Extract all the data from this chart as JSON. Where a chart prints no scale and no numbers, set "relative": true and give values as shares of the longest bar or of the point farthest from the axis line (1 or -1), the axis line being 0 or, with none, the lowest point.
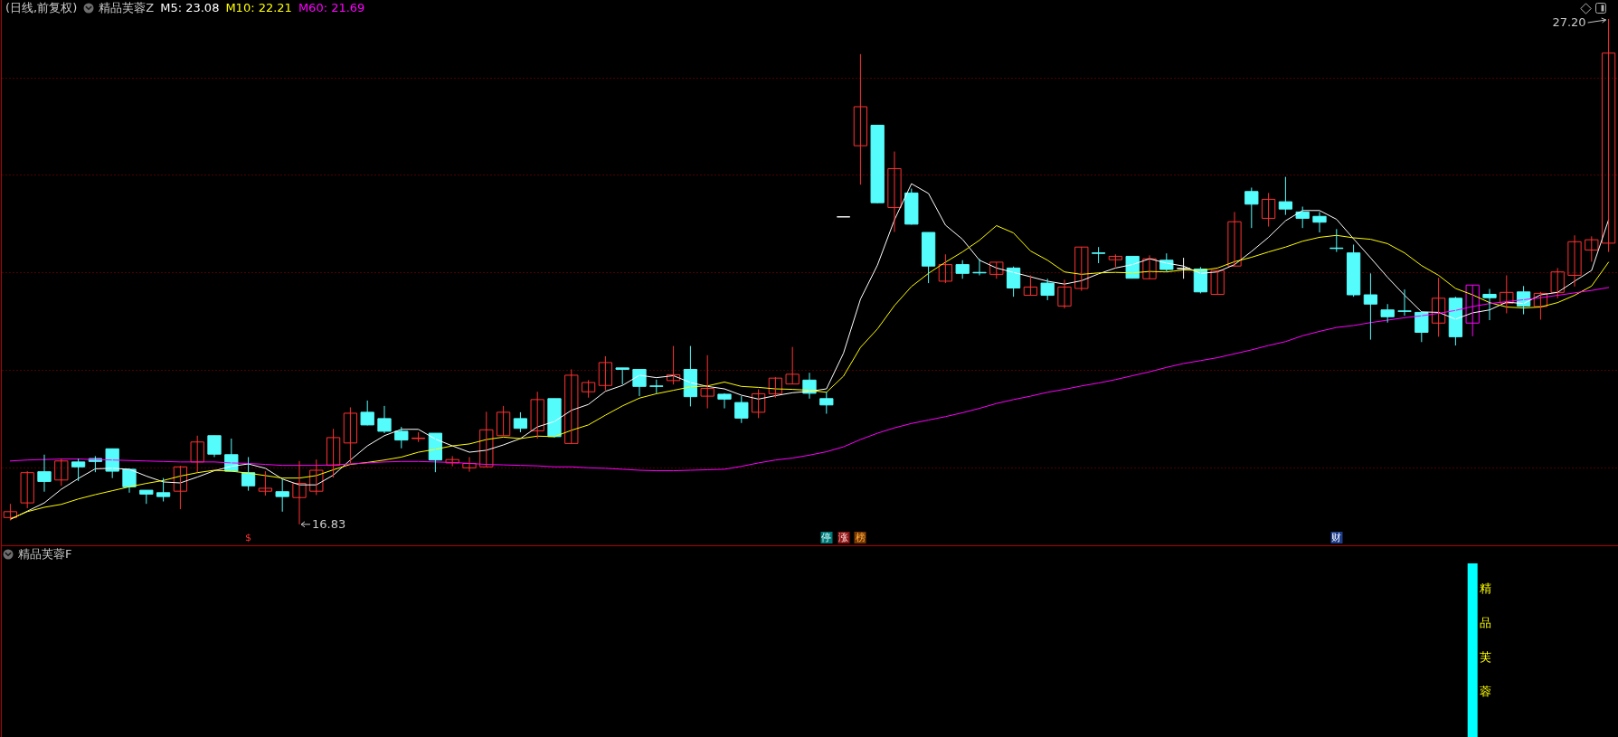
{
  "chart_data": [
    {
      "type": "candlestick",
      "title": "(日线,前复权)",
      "subtitle": "精品芙蓉Z",
      "categories": [
        null,
        null,
        null,
        null,
        null,
        null,
        null,
        null,
        null,
        null,
        null,
        null,
        null,
        null,
        null,
        null,
        null,
        null,
        null,
        null,
        null,
        null,
        null,
        null,
        null,
        null,
        null,
        null,
        null,
        null,
        null,
        null,
        null,
        null,
        null,
        null,
        null,
        null,
        null,
        null,
        null,
        null,
        null,
        null,
        null,
        null,
        null,
        null,
        null,
        null,
        null,
        null,
        null,
        null,
        null,
        null,
        null,
        null,
        null,
        null,
        null,
        null,
        null,
        null,
        null,
        null,
        null,
        null,
        null,
        null,
        null,
        null,
        null,
        null,
        null,
        null,
        null,
        null,
        null,
        null,
        null,
        null,
        null,
        null,
        null,
        null,
        null,
        null,
        null,
        null,
        null,
        null,
        null,
        null,
        null
      ],
      "ohlc": [
        [
          16.97,
          17.25,
          16.91,
          17.09
        ],
        [
          17.27,
          17.92,
          17.16,
          17.89
        ],
        [
          17.91,
          18.26,
          17.5,
          17.71
        ],
        [
          17.74,
          18.18,
          17.62,
          18.13
        ],
        [
          18.11,
          18.18,
          17.72,
          18.01
        ],
        [
          18.18,
          18.23,
          17.9,
          18.12
        ],
        [
          18.38,
          18.38,
          17.78,
          17.92
        ],
        [
          17.96,
          17.96,
          17.48,
          17.6
        ],
        [
          17.53,
          17.53,
          17.25,
          17.45
        ],
        [
          17.48,
          17.78,
          17.3,
          17.4
        ],
        [
          17.51,
          18.03,
          17.14,
          18.01
        ],
        [
          18.11,
          18.65,
          17.9,
          18.52
        ],
        [
          18.65,
          18.65,
          18.21,
          18.27
        ],
        [
          18.26,
          18.59,
          17.92,
          17.92
        ],
        [
          17.89,
          18.21,
          17.52,
          17.62
        ],
        [
          17.51,
          17.92,
          17.42,
          17.57
        ],
        [
          17.5,
          17.76,
          17.09,
          17.4
        ],
        [
          17.38,
          18.13,
          16.83,
          17.67
        ],
        [
          17.51,
          18.16,
          17.43,
          17.94
        ],
        [
          18.04,
          18.79,
          17.79,
          18.61
        ],
        [
          18.5,
          19.23,
          18.08,
          19.11
        ],
        [
          19.13,
          19.37,
          18.86,
          18.87
        ],
        [
          19.0,
          19.26,
          18.7,
          18.74
        ],
        [
          18.74,
          18.83,
          18.39,
          18.56
        ],
        [
          18.59,
          18.72,
          18.52,
          18.6
        ],
        [
          18.7,
          18.7,
          17.9,
          18.15
        ],
        [
          18.09,
          18.23,
          18.02,
          18.16
        ],
        [
          17.99,
          18.21,
          17.91,
          18.08
        ],
        [
          18.01,
          19.14,
          18.01,
          18.77
        ],
        [
          18.65,
          19.26,
          18.65,
          19.13
        ],
        [
          19.0,
          19.13,
          18.72,
          18.8
        ],
        [
          18.75,
          19.55,
          18.59,
          19.39
        ],
        [
          19.41,
          19.41,
          18.61,
          18.63
        ],
        [
          18.49,
          20.01,
          18.49,
          19.89
        ],
        [
          19.55,
          19.79,
          19.43,
          19.74
        ],
        [
          19.68,
          20.28,
          19.58,
          20.15
        ],
        [
          20.04,
          20.04,
          19.7,
          20.01
        ],
        [
          20.01,
          20.01,
          19.46,
          19.66
        ],
        [
          19.67,
          19.8,
          19.52,
          19.66
        ],
        [
          19.78,
          20.49,
          19.7,
          19.9
        ],
        [
          20.01,
          20.49,
          19.25,
          19.45
        ],
        [
          19.46,
          20.3,
          19.21,
          19.62
        ],
        [
          19.5,
          19.52,
          19.21,
          19.4
        ],
        [
          19.33,
          19.46,
          18.91,
          19.01
        ],
        [
          19.13,
          19.6,
          19.01,
          19.51
        ],
        [
          19.51,
          19.85,
          19.43,
          19.83
        ],
        [
          19.71,
          20.47,
          19.71,
          19.91
        ],
        [
          19.79,
          19.94,
          19.41,
          19.52
        ],
        [
          19.41,
          19.55,
          19.1,
          19.28
        ],
        [
          23.14,
          23.14,
          23.14,
          23.14
        ],
        [
          24.6,
          26.48,
          23.8,
          25.4
        ],
        [
          25.02,
          25.02,
          23.42,
          23.43
        ],
        [
          23.33,
          24.48,
          22.83,
          24.13
        ],
        [
          23.63,
          23.72,
          22.98,
          22.99
        ],
        [
          22.82,
          22.82,
          21.78,
          22.13
        ],
        [
          21.82,
          22.37,
          21.78,
          22.16
        ],
        [
          22.16,
          22.25,
          21.87,
          21.98
        ],
        [
          22.0,
          22.28,
          21.94,
          21.99
        ],
        [
          21.96,
          22.21,
          21.87,
          22.21
        ],
        [
          22.09,
          22.12,
          21.5,
          21.68
        ],
        [
          21.53,
          21.94,
          21.53,
          21.7
        ],
        [
          21.78,
          21.87,
          21.43,
          21.53
        ],
        [
          21.31,
          21.85,
          21.26,
          21.7
        ],
        [
          21.67,
          22.52,
          21.62,
          22.52
        ],
        [
          22.4,
          22.52,
          22.19,
          22.39
        ],
        [
          22.26,
          22.37,
          22.11,
          22.33
        ],
        [
          22.33,
          22.33,
          21.88,
          21.88
        ],
        [
          21.87,
          22.35,
          21.87,
          22.28
        ],
        [
          22.25,
          22.39,
          22.02,
          22.06
        ],
        [
          22.08,
          22.3,
          21.87,
          22.08
        ],
        [
          22.07,
          22.11,
          21.57,
          21.6
        ],
        [
          21.55,
          22.04,
          21.55,
          22.04
        ],
        [
          22.13,
          23.24,
          22.13,
          23.04
        ],
        [
          23.66,
          23.74,
          22.91,
          23.4
        ],
        [
          23.11,
          23.63,
          22.94,
          23.5
        ],
        [
          23.45,
          23.96,
          23.18,
          23.3
        ],
        [
          23.24,
          23.35,
          22.91,
          23.11
        ],
        [
          23.15,
          23.24,
          22.82,
          23.03
        ],
        [
          22.5,
          22.89,
          22.42,
          22.49
        ],
        [
          22.4,
          22.57,
          21.5,
          21.54
        ],
        [
          21.54,
          21.98,
          20.62,
          21.35
        ],
        [
          21.23,
          21.35,
          20.97,
          21.09
        ],
        [
          21.21,
          21.65,
          21.11,
          21.2
        ],
        [
          21.18,
          21.19,
          20.57,
          20.77
        ],
        [
          20.96,
          21.89,
          20.68,
          21.47
        ],
        [
          21.47,
          21.5,
          20.5,
          20.68
        ],
        [
          20.96,
          21.74,
          20.69,
          21.74
        ],
        [
          21.55,
          21.66,
          21.02,
          21.48
        ],
        [
          21.37,
          21.94,
          21.16,
          21.59
        ],
        [
          21.6,
          21.72,
          21.14,
          21.31
        ],
        [
          21.3,
          21.6,
          21.03,
          21.57
        ],
        [
          21.59,
          22.09,
          21.47,
          22.01
        ],
        [
          21.94,
          22.76,
          21.71,
          22.63
        ],
        [
          22.46,
          22.74,
          22.22,
          22.67
        ],
        [
          22.6,
          27.2,
          22.42,
          26.5
        ]
      ],
      "colors": [
        "#ff3232",
        "#ff3232",
        "#54fcfc",
        "#ff3232",
        "#54fcfc",
        "#54fcfc",
        "#54fcfc",
        "#54fcfc",
        "#54fcfc",
        "#54fcfc",
        "#ff3232",
        "#ff3232",
        "#54fcfc",
        "#54fcfc",
        "#54fcfc",
        "#ff3232",
        "#54fcfc",
        "#ff3232",
        "#ff3232",
        "#ff3232",
        "#ff3232",
        "#54fcfc",
        "#54fcfc",
        "#54fcfc",
        "#ff3232",
        "#54fcfc",
        "#ff3232",
        "#ff3232",
        "#ff3232",
        "#ff3232",
        "#54fcfc",
        "#ff3232",
        "#54fcfc",
        "#ff3232",
        "#ff3232",
        "#ff3232",
        "#54fcfc",
        "#54fcfc",
        "#54fcfc",
        "#ff3232",
        "#54fcfc",
        "#ff3232",
        "#54fcfc",
        "#54fcfc",
        "#ff3232",
        "#ff3232",
        "#ff3232",
        "#54fcfc",
        "#54fcfc",
        "#ffffff",
        "#ff3232",
        "#54fcfc",
        "#ff3232",
        "#54fcfc",
        "#54fcfc",
        "#ff3232",
        "#54fcfc",
        "#54fcfc",
        "#ff3232",
        "#54fcfc",
        "#ff3232",
        "#54fcfc",
        "#ff3232",
        "#ff3232",
        "#54fcfc",
        "#ff3232",
        "#54fcfc",
        "#ff3232",
        "#54fcfc",
        "#ffffff",
        "#54fcfc",
        "#ff3232",
        "#ff3232",
        "#54fcfc",
        "#ff3232",
        "#54fcfc",
        "#54fcfc",
        "#54fcfc",
        "#54fcfc",
        "#54fcfc",
        "#54fcfc",
        "#54fcfc",
        "#54fcfc",
        "#54fcfc",
        "#ff3232",
        "#54fcfc",
        "#ff00ff",
        "#54fcfc",
        "#ff3232",
        "#54fcfc",
        "#ff3232",
        "#ff3232",
        "#ff3232",
        "#ff3232",
        "#ff3232"
      ],
      "series": [
        {
          "name": "M5: 23.08",
          "type": "line",
          "color": "#ffffff",
          "values": [
            16.93,
            17.1,
            17.27,
            17.55,
            17.77,
            17.97,
            17.98,
            17.96,
            17.82,
            17.7,
            17.68,
            17.8,
            17.93,
            18.02,
            18.07,
            17.98,
            17.76,
            17.64,
            17.64,
            17.84,
            18.15,
            18.44,
            18.65,
            18.78,
            18.78,
            18.58,
            18.44,
            18.31,
            18.35,
            18.46,
            18.59,
            18.83,
            18.94,
            19.17,
            19.29,
            19.56,
            19.68,
            19.89,
            19.84,
            19.88,
            19.74,
            19.66,
            19.61,
            19.48,
            19.4,
            19.47,
            19.53,
            19.56,
            19.61,
            20.34,
            21.45,
            22.15,
            23.08,
            23.82,
            23.62,
            22.97,
            22.68,
            22.25,
            22.09,
            22.0,
            21.91,
            21.82,
            21.76,
            21.83,
            21.97,
            22.09,
            22.16,
            22.28,
            22.19,
            22.13,
            21.98,
            22.01,
            22.16,
            22.43,
            22.72,
            23.06,
            23.27,
            23.27,
            23.09,
            22.69,
            22.3,
            21.9,
            21.53,
            21.19,
            21.18,
            21.04,
            21.17,
            21.23,
            21.39,
            21.36,
            21.54,
            21.59,
            21.82,
            22.04,
            23.08
          ]
        },
        {
          "name": "M10: 22.21",
          "type": "line",
          "color": "#ffff00",
          "values": [
            16.94,
            17.09,
            17.18,
            17.24,
            17.35,
            17.44,
            17.52,
            17.6,
            17.67,
            17.73,
            17.82,
            17.89,
            17.94,
            17.92,
            17.88,
            17.83,
            17.78,
            17.78,
            17.83,
            17.95,
            18.06,
            18.1,
            18.15,
            18.21,
            18.31,
            18.37,
            18.44,
            18.48,
            18.57,
            18.62,
            18.59,
            18.64,
            18.63,
            18.76,
            18.87,
            19.07,
            19.26,
            19.42,
            19.51,
            19.58,
            19.65,
            19.67,
            19.75,
            19.66,
            19.64,
            19.61,
            19.6,
            19.58,
            19.54,
            19.87,
            20.46,
            20.84,
            21.32,
            21.71,
            21.98,
            22.21,
            22.42,
            22.66,
            22.96,
            22.81,
            22.44,
            22.25,
            22.01,
            21.96,
            21.99,
            22.0,
            21.99,
            22.02,
            22.01,
            22.05,
            22.04,
            22.09,
            22.22,
            22.31,
            22.42,
            22.52,
            22.64,
            22.72,
            22.76,
            22.71,
            22.68,
            22.59,
            22.4,
            22.14,
            21.94,
            21.67,
            21.54,
            21.38,
            21.29,
            21.27,
            21.29,
            21.38,
            21.53,
            21.72,
            22.21
          ]
        },
        {
          "name": "M60: 21.69",
          "type": "line",
          "color": "#ff00ff",
          "values": [
            18.13,
            18.15,
            18.16,
            18.17,
            18.17,
            18.16,
            18.15,
            18.14,
            18.13,
            18.12,
            18.11,
            18.11,
            18.11,
            18.09,
            18.08,
            18.06,
            18.04,
            18.04,
            18.04,
            18.05,
            18.07,
            18.09,
            18.11,
            18.12,
            18.12,
            18.11,
            18.1,
            18.08,
            18.06,
            18.05,
            18.04,
            18.03,
            18.01,
            18.01,
            17.99,
            17.98,
            17.96,
            17.94,
            17.93,
            17.93,
            17.94,
            17.95,
            17.96,
            18.02,
            18.09,
            18.15,
            18.19,
            18.25,
            18.32,
            18.42,
            18.57,
            18.7,
            18.81,
            18.9,
            18.97,
            19.04,
            19.12,
            19.21,
            19.31,
            19.39,
            19.46,
            19.54,
            19.6,
            19.67,
            19.73,
            19.8,
            19.88,
            19.96,
            20.05,
            20.13,
            20.19,
            20.25,
            20.33,
            20.41,
            20.5,
            20.58,
            20.7,
            20.79,
            20.87,
            20.91,
            20.97,
            21.02,
            21.07,
            21.11,
            21.16,
            21.22,
            21.3,
            21.36,
            21.4,
            21.44,
            21.48,
            21.53,
            21.58,
            21.63,
            21.69
          ]
        }
      ],
      "ylim": [
        16.4,
        27.59
      ],
      "yticks": [
        {
          "value": 18,
          "label": null
        },
        {
          "value": 20,
          "label": null
        },
        {
          "value": 22,
          "label": null
        },
        {
          "value": 24,
          "label": null
        },
        {
          "value": 26,
          "label": null
        }
      ],
      "grid": "y",
      "legend": "top left",
      "annotations": [
        "27.20",
        "16.83",
        "$",
        "停",
        "涨",
        "榜",
        "财"
      ]
    },
    {
      "type": "bar",
      "title": "精品芙蓉F",
      "relative": true,
      "color": "#00ffff",
      "categories": [
        null,
        null,
        null,
        null,
        null,
        null,
        null,
        null,
        null,
        null,
        null,
        null,
        null,
        null,
        null,
        null,
        null,
        null,
        null,
        null,
        null,
        null,
        null,
        null,
        null,
        null,
        null,
        null,
        null,
        null,
        null,
        null,
        null,
        null,
        null,
        null,
        null,
        null,
        null,
        null,
        null,
        null,
        null,
        null,
        null,
        null,
        null,
        null,
        null,
        null,
        null,
        null,
        null,
        null,
        null,
        null,
        null,
        null,
        null,
        null,
        null,
        null,
        null,
        null,
        null,
        null,
        null,
        null,
        null,
        null,
        null,
        null,
        null,
        null,
        null,
        null,
        null,
        null,
        null,
        null,
        null,
        null,
        null,
        null,
        null,
        null,
        null,
        null,
        null,
        null,
        null,
        null,
        null,
        null,
        null
      ],
      "values": [
        null,
        null,
        null,
        null,
        null,
        null,
        null,
        null,
        null,
        null,
        null,
        null,
        null,
        null,
        null,
        null,
        null,
        null,
        null,
        null,
        null,
        null,
        null,
        null,
        null,
        null,
        null,
        null,
        null,
        null,
        null,
        null,
        null,
        null,
        null,
        null,
        null,
        null,
        null,
        null,
        null,
        null,
        null,
        null,
        null,
        null,
        null,
        null,
        null,
        null,
        null,
        null,
        null,
        null,
        null,
        null,
        null,
        null,
        null,
        null,
        null,
        null,
        null,
        null,
        null,
        null,
        null,
        null,
        null,
        null,
        null,
        null,
        null,
        null,
        null,
        null,
        null,
        null,
        null,
        null,
        null,
        null,
        null,
        null,
        null,
        null,
        1,
        null,
        null,
        null,
        null,
        null,
        null,
        null,
        null
      ],
      "annotations": [
        "精品芙蓉"
      ]
    }
  ]
}
